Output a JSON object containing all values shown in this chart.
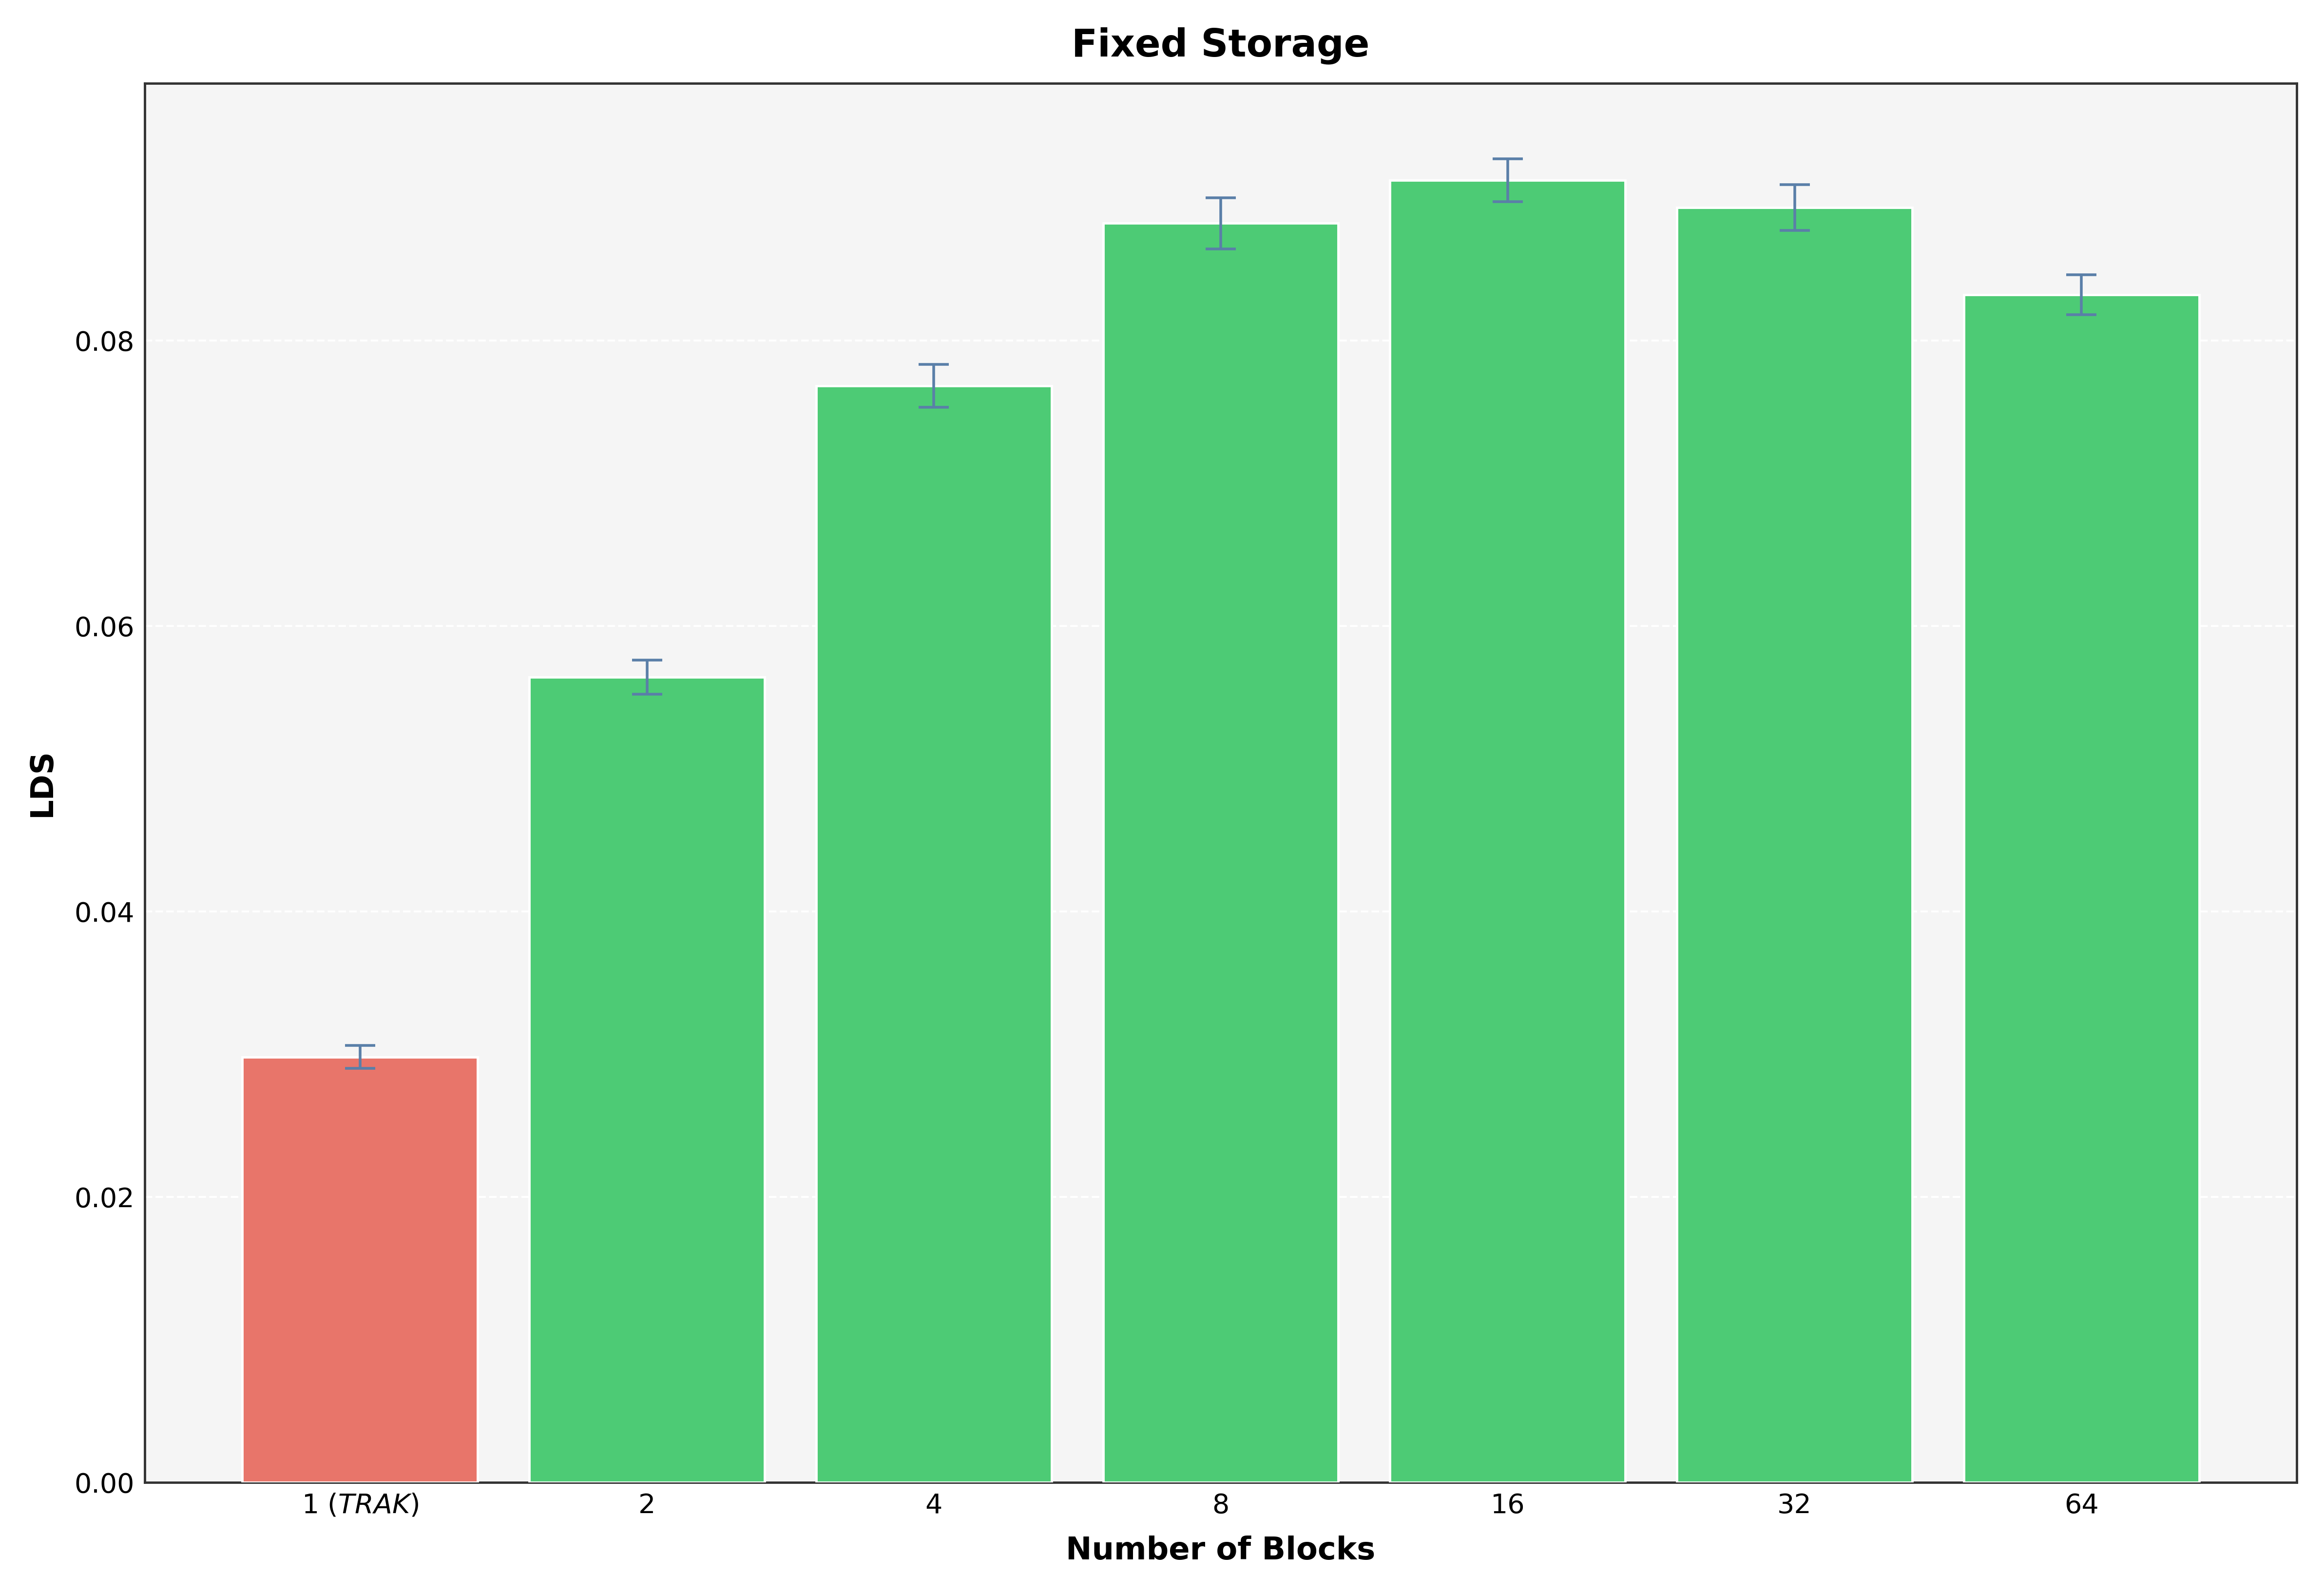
{
  "title": "Fixed Storage",
  "xlabel": "Number of Blocks",
  "ylabel": "LDS",
  "categories": [
    "1 (\\it{TRAK})",
    "2",
    "4",
    "8",
    "16",
    "32",
    "64"
  ],
  "xtick_labels": [
    "1 ($\\it{TRAK}$)",
    "2",
    "4",
    "8",
    "16",
    "32",
    "64"
  ],
  "values": [
    0.0298,
    0.0564,
    0.0768,
    0.0882,
    0.0912,
    0.0893,
    0.0832
  ],
  "errors": [
    0.0008,
    0.0012,
    0.0015,
    0.0018,
    0.0015,
    0.0016,
    0.0014
  ],
  "bar_colors": [
    "#E8756A",
    "#4DCB75",
    "#4DCB75",
    "#4DCB75",
    "#4DCB75",
    "#4DCB75",
    "#4DCB75"
  ],
  "error_color": "#5a7fa8",
  "background_color": "#EBEBEB",
  "plot_background": "#F5F5F5",
  "ylim": [
    0.0,
    0.098
  ],
  "yticks": [
    0.0,
    0.02,
    0.04,
    0.06,
    0.08
  ],
  "title_fontsize": 56,
  "axis_label_fontsize": 46,
  "tick_fontsize": 40,
  "bar_width": 0.82,
  "grid_color": "#FFFFFF",
  "grid_linewidth": 3.0,
  "spine_color": "#333333",
  "spine_linewidth": 3.5,
  "error_linewidth": 4.0,
  "error_capsize": 22,
  "error_capthick": 4.0
}
